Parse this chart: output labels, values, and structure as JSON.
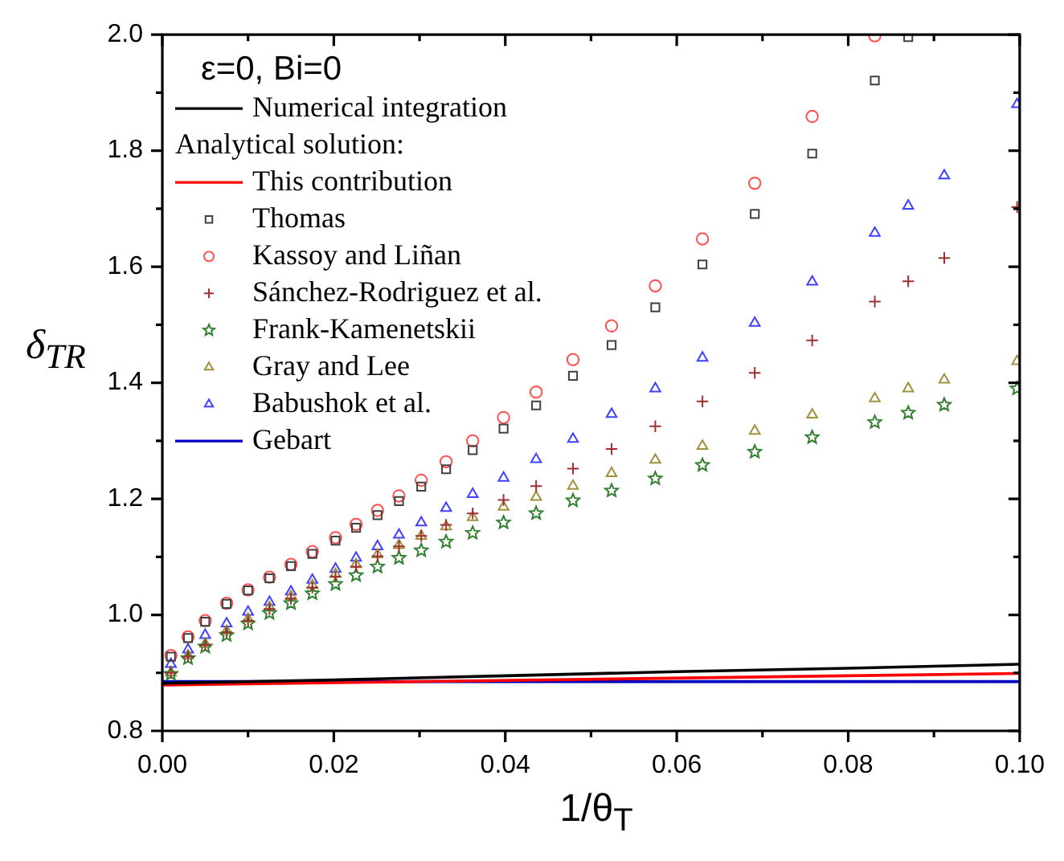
{
  "chart_data": {
    "type": "scatter",
    "xlabel": "1/θ$_{T}$",
    "ylabel": "δ$_{TR}$",
    "legend_title": "ε=0, Bi=0",
    "annotations": [
      "Analytical solution:"
    ],
    "legend": "top left",
    "grid": false,
    "xlim": [
      0,
      0.1
    ],
    "ylim": [
      0.8,
      2.0
    ],
    "xticks": [
      {
        "value": 0,
        "label": "0.00"
      },
      {
        "value": 0.01,
        "label": null
      },
      {
        "value": 0.02,
        "label": "0.02"
      },
      {
        "value": 0.03,
        "label": null
      },
      {
        "value": 0.04,
        "label": "0.04"
      },
      {
        "value": 0.05,
        "label": null
      },
      {
        "value": 0.06,
        "label": "0.06"
      },
      {
        "value": 0.07,
        "label": null
      },
      {
        "value": 0.08,
        "label": "0.08"
      },
      {
        "value": 0.09,
        "label": null
      },
      {
        "value": 0.1,
        "label": "0.10"
      }
    ],
    "yticks": [
      0.8,
      {
        "value": 0.9,
        "label": null
      },
      {
        "value": 1,
        "label": "1.0"
      },
      {
        "value": 1.1,
        "label": null
      },
      1.2,
      {
        "value": 1.3,
        "label": null
      },
      1.4,
      {
        "value": 1.5,
        "label": null
      },
      1.6,
      {
        "value": 1.7,
        "label": null
      },
      1.8,
      {
        "value": 1.9,
        "label": null
      },
      {
        "value": 2,
        "label": "2.0"
      }
    ],
    "x": [
      0.001,
      0.003,
      0.005,
      0.0075,
      0.01,
      0.0125,
      0.015,
      0.0175,
      0.0202,
      0.0226,
      0.0251,
      0.0276,
      0.0302,
      0.0331,
      0.0362,
      0.0398,
      0.0436,
      0.0479,
      0.0524,
      0.0575,
      0.063,
      0.0691,
      0.0758,
      0.0831,
      0.087,
      0.0912,
      0.0997
    ],
    "series": [
      {
        "name": "Numerical integration",
        "type": "line",
        "color": "#000000",
        "line_style": "solid",
        "x": [
          0,
          0.02,
          0.04,
          0.06,
          0.08,
          0.1
        ],
        "values": [
          0.882,
          0.888,
          0.895,
          0.902,
          0.908,
          0.915
        ]
      },
      {
        "name": "This contribution",
        "type": "line",
        "color": "#ff0000",
        "line_style": "solid",
        "x": [
          0,
          0.1
        ],
        "values": [
          0.879,
          0.899
        ]
      },
      {
        "name": "Thomas",
        "marker": "square",
        "color": "#404040",
        "values": [
          0.928,
          0.96,
          0.988,
          1.019,
          1.042,
          1.063,
          1.084,
          1.105,
          1.128,
          1.15,
          1.172,
          1.196,
          1.221,
          1.251,
          1.284,
          1.321,
          1.361,
          1.412,
          1.465,
          1.53,
          1.604,
          1.691,
          1.795,
          1.921,
          1.996,
          null,
          null
        ]
      },
      {
        "name": "Kassoy and Liñan",
        "marker": "circle",
        "color": "#ff5050",
        "values": [
          0.93,
          0.962,
          0.99,
          1.02,
          1.043,
          1.065,
          1.087,
          1.109,
          1.133,
          1.156,
          1.18,
          1.205,
          1.232,
          1.264,
          1.3,
          1.34,
          1.384,
          1.44,
          1.498,
          1.567,
          1.648,
          1.744,
          1.859,
          1.998,
          null,
          null,
          null
        ]
      },
      {
        "name": "Sánchez-Rodriguez et al.",
        "marker": "cross",
        "color": "#a03030",
        "values": [
          0.9,
          0.928,
          0.948,
          0.97,
          0.99,
          1.01,
          1.028,
          1.047,
          1.066,
          1.083,
          1.101,
          1.118,
          1.136,
          1.155,
          1.175,
          1.198,
          1.222,
          1.252,
          1.286,
          1.325,
          1.368,
          1.417,
          1.473,
          1.54,
          1.575,
          1.615,
          1.703
        ]
      },
      {
        "name": "Frank-Kamenetskii",
        "marker": "star",
        "color": "#308030",
        "values": [
          0.898,
          0.925,
          0.945,
          0.965,
          0.985,
          1.003,
          1.02,
          1.037,
          1.053,
          1.068,
          1.083,
          1.098,
          1.111,
          1.126,
          1.141,
          1.159,
          1.175,
          1.197,
          1.214,
          1.235,
          1.258,
          1.281,
          1.306,
          1.332,
          1.348,
          1.362,
          1.39
        ]
      },
      {
        "name": "Gray and Lee",
        "marker": "triangle",
        "color": "#a09040",
        "values": [
          0.9,
          0.93,
          0.95,
          0.972,
          0.993,
          1.013,
          1.032,
          1.051,
          1.07,
          1.087,
          1.104,
          1.12,
          1.136,
          1.152,
          1.168,
          1.186,
          1.203,
          1.222,
          1.244,
          1.267,
          1.291,
          1.317,
          1.345,
          1.373,
          1.39,
          1.405,
          1.437
        ]
      },
      {
        "name": "Babushok et al.",
        "marker": "triangle",
        "color": "#4040ff",
        "values": [
          0.915,
          0.94,
          0.965,
          0.985,
          1.005,
          1.022,
          1.04,
          1.06,
          1.079,
          1.098,
          1.118,
          1.138,
          1.159,
          1.184,
          1.208,
          1.236,
          1.268,
          1.303,
          1.346,
          1.39,
          1.443,
          1.503,
          1.574,
          1.658,
          1.705,
          1.757,
          1.88
        ]
      },
      {
        "name": "Gebart",
        "type": "line",
        "color": "#0000c0",
        "line_style": "solid",
        "x": [
          0,
          0.1
        ],
        "values": [
          0.885,
          0.885
        ]
      }
    ]
  }
}
